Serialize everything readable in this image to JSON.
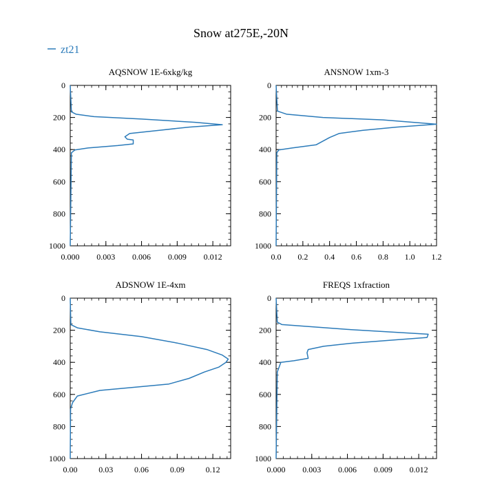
{
  "figure": {
    "title": "Snow at275E,-20N",
    "legend": {
      "label": "zt21",
      "color": "#2a7ab9",
      "placement": "top-left"
    }
  },
  "chart_data": [
    {
      "type": "line",
      "title": "AQSNOW  1E-6xkg/kg",
      "xlim": [
        0,
        0.0135
      ],
      "ylim": [
        1000,
        0
      ],
      "xticks": [
        0.0,
        0.003,
        0.006,
        0.009,
        0.012
      ],
      "xtick_labels": [
        "0.000",
        "0.003",
        "0.006",
        "0.009",
        "0.012"
      ],
      "yticks": [
        0,
        200,
        400,
        600,
        800,
        1000
      ],
      "ytick_labels": [
        "0",
        "200",
        "400",
        "600",
        "800",
        "1000"
      ],
      "series": [
        {
          "name": "zt21",
          "color": "#2a7ab9",
          "x": [
            0,
            0.0001,
            0.0005,
            0.002,
            0.006,
            0.0105,
            0.0128,
            0.01,
            0.0075,
            0.005,
            0.0046,
            0.0048,
            0.0053,
            0.0053,
            0.004,
            0.0015,
            0.0004,
            0.0001,
            0
          ],
          "y": [
            0,
            165,
            180,
            195,
            210,
            230,
            245,
            260,
            280,
            300,
            320,
            335,
            340,
            365,
            375,
            390,
            402,
            420,
            1000
          ]
        }
      ]
    },
    {
      "type": "line",
      "title": "ANSNOW  1xm-3",
      "xlim": [
        0,
        1.2
      ],
      "ylim": [
        1000,
        0
      ],
      "xticks": [
        0.0,
        0.2,
        0.4,
        0.6,
        0.8,
        1.0,
        1.2
      ],
      "xtick_labels": [
        "0.0",
        "0.2",
        "0.4",
        "0.6",
        "0.8",
        "1.0",
        "1.2"
      ],
      "yticks": [
        0,
        200,
        400,
        600,
        800,
        1000
      ],
      "ytick_labels": [
        "0",
        "200",
        "400",
        "600",
        "800",
        "1000"
      ],
      "series": [
        {
          "name": "zt21",
          "color": "#2a7ab9",
          "x": [
            0,
            0.01,
            0.08,
            0.35,
            0.8,
            1.2,
            0.9,
            0.65,
            0.47,
            0.4,
            0.3,
            0.12,
            0.02,
            0.005,
            0
          ],
          "y": [
            0,
            160,
            180,
            200,
            215,
            242,
            260,
            280,
            300,
            325,
            370,
            390,
            402,
            420,
            1000
          ]
        }
      ]
    },
    {
      "type": "line",
      "title": "ADSNOW  1E-4xm",
      "xlim": [
        0,
        0.135
      ],
      "ylim": [
        1000,
        0
      ],
      "xticks": [
        0.0,
        0.03,
        0.06,
        0.09,
        0.12
      ],
      "xtick_labels": [
        "0.00",
        "0.03",
        "0.06",
        "0.09",
        "0.12"
      ],
      "yticks": [
        0,
        200,
        400,
        600,
        800,
        1000
      ],
      "ytick_labels": [
        "0",
        "200",
        "400",
        "600",
        "800",
        "1000"
      ],
      "series": [
        {
          "name": "zt21",
          "color": "#2a7ab9",
          "x": [
            0,
            0.0005,
            0.006,
            0.025,
            0.06,
            0.09,
            0.115,
            0.128,
            0.133,
            0.131,
            0.125,
            0.113,
            0.1,
            0.083,
            0.055,
            0.025,
            0.006,
            0.002,
            0.0003,
            0
          ],
          "y": [
            0,
            165,
            185,
            210,
            240,
            280,
            320,
            355,
            380,
            400,
            430,
            460,
            500,
            535,
            555,
            575,
            610,
            650,
            690,
            1000
          ]
        }
      ]
    },
    {
      "type": "line",
      "title": "FREQS  1xfraction",
      "xlim": [
        0,
        0.0135
      ],
      "ylim": [
        1000,
        0
      ],
      "xticks": [
        0.0,
        0.003,
        0.006,
        0.009,
        0.012
      ],
      "xtick_labels": [
        "0.000",
        "0.003",
        "0.006",
        "0.009",
        "0.012"
      ],
      "yticks": [
        0,
        200,
        400,
        600,
        800,
        1000
      ],
      "ytick_labels": [
        "0",
        "200",
        "400",
        "600",
        "800",
        "1000"
      ],
      "series": [
        {
          "name": "zt21",
          "color": "#2a7ab9",
          "x": [
            0,
            0.0001,
            0.0005,
            0.006,
            0.0128,
            0.0127,
            0.01,
            0.0065,
            0.004,
            0.0027,
            0.0026,
            0.0027,
            0.0015,
            0.0004,
            0.0001,
            0
          ],
          "y": [
            0,
            150,
            165,
            195,
            225,
            245,
            260,
            280,
            300,
            320,
            340,
            375,
            390,
            400,
            460,
            1000
          ]
        }
      ]
    }
  ]
}
